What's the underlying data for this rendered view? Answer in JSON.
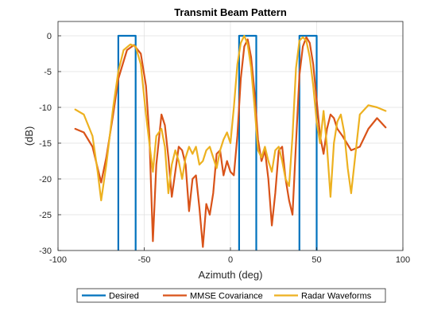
{
  "chart_data": {
    "type": "line",
    "title": "Transmit Beam Pattern",
    "xlabel": "Azimuth (deg)",
    "ylabel": "(dB)",
    "xlim": [
      -100,
      100
    ],
    "ylim": [
      -30,
      2
    ],
    "xticks": [
      -100,
      -50,
      0,
      50,
      100
    ],
    "yticks": [
      0,
      -5,
      -10,
      -15,
      -20,
      -25,
      -30
    ],
    "grid": true,
    "legend_position": "bottom-outside",
    "legend_orientation": "horizontal",
    "series": [
      {
        "name": "Desired",
        "color": "#0072BD",
        "x": [
          -65,
          -65,
          -55,
          -55,
          5,
          5,
          15,
          15,
          40,
          40,
          50,
          50
        ],
        "y": [
          -31,
          0,
          0,
          -31,
          -31,
          0,
          0,
          -31,
          -31,
          0,
          0,
          -31
        ]
      },
      {
        "name": "MMSE Covariance",
        "color": "#D95319",
        "x": [
          -90,
          -85,
          -80,
          -77,
          -75,
          -72,
          -68,
          -65,
          -60,
          -56,
          -52,
          -49,
          -47,
          -45,
          -43,
          -40,
          -38,
          -36,
          -34,
          -32,
          -30,
          -28,
          -26,
          -24,
          -22,
          -20,
          -18,
          -16,
          -14,
          -12,
          -10,
          -8,
          -6,
          -4,
          -2,
          0,
          2,
          4,
          6,
          8,
          10,
          12,
          14,
          16,
          18,
          20,
          22,
          24,
          26,
          28,
          30,
          32,
          34,
          36,
          38,
          40,
          42,
          44,
          46,
          48,
          50,
          52,
          54,
          56,
          58,
          60,
          62,
          65,
          70,
          75,
          80,
          85,
          90
        ],
        "y": [
          -13,
          -13.5,
          -15.5,
          -18.5,
          -20.5,
          -17,
          -11,
          -6,
          -2,
          -1.3,
          -2.5,
          -7,
          -14,
          -28.7,
          -18,
          -11,
          -12.5,
          -17,
          -22.5,
          -19,
          -15.5,
          -16,
          -18,
          -24.5,
          -20,
          -19.5,
          -24,
          -29.5,
          -23.5,
          -25,
          -22,
          -16.5,
          -16,
          -19.5,
          -17.5,
          -19,
          -19.5,
          -14,
          -6,
          -1.5,
          -0.5,
          -3,
          -8,
          -14.5,
          -17.5,
          -16,
          -20,
          -26.5,
          -22,
          -16,
          -15.5,
          -20,
          -23,
          -25,
          -15,
          -5.5,
          -1.5,
          -0.2,
          -1,
          -4,
          -9,
          -14,
          -16.5,
          -13,
          -11,
          -11.5,
          -13,
          -14,
          -16,
          -15.5,
          -13,
          -11.5,
          -12.8
        ]
      },
      {
        "name": "Radar Waveforms",
        "color": "#EDB120",
        "x": [
          -90,
          -85,
          -80,
          -77,
          -75,
          -72,
          -68,
          -65,
          -62,
          -58,
          -55,
          -52,
          -49,
          -47,
          -45,
          -43,
          -40,
          -38,
          -36,
          -34,
          -32,
          -30,
          -28,
          -26,
          -24,
          -22,
          -20,
          -18,
          -16,
          -14,
          -12,
          -10,
          -8,
          -6,
          -4,
          -2,
          0,
          2,
          4,
          6,
          8,
          10,
          12,
          14,
          16,
          18,
          20,
          22,
          24,
          26,
          28,
          30,
          32,
          34,
          36,
          38,
          40,
          42,
          44,
          46,
          48,
          50,
          52,
          54,
          56,
          58,
          60,
          62,
          64,
          66,
          68,
          70,
          75,
          80,
          85,
          90
        ],
        "y": [
          -10.3,
          -11,
          -14,
          -19,
          -23,
          -18,
          -10,
          -5,
          -2,
          -1.2,
          -1.5,
          -4,
          -11,
          -15,
          -19,
          -14,
          -13,
          -15.5,
          -22,
          -18,
          -16,
          -17.5,
          -20,
          -17,
          -15.5,
          -16.5,
          -15.5,
          -18,
          -17.5,
          -16,
          -15.5,
          -17,
          -18.5,
          -16,
          -14.5,
          -13.5,
          -15,
          -10,
          -4,
          -1,
          0,
          -1.2,
          -4.5,
          -10,
          -16,
          -17,
          -15.5,
          -17.5,
          -19,
          -16,
          -15.5,
          -17.5,
          -20,
          -21,
          -14,
          -4.5,
          -0.7,
          -0.2,
          -0.7,
          -3,
          -7,
          -12,
          -15,
          -10.5,
          -15.5,
          -22.5,
          -15,
          -12,
          -11,
          -13.5,
          -18.5,
          -22,
          -11,
          -9.7,
          -10,
          -10.5
        ]
      }
    ]
  }
}
